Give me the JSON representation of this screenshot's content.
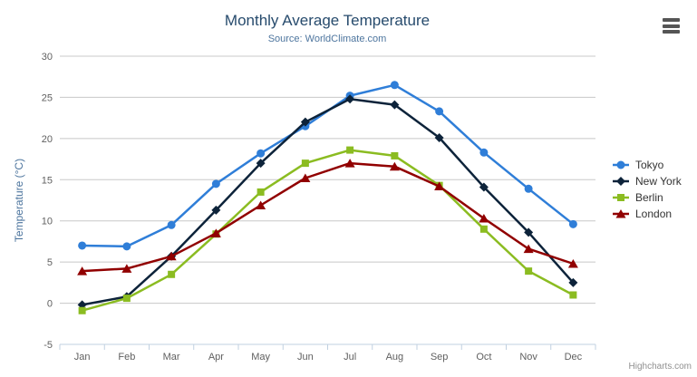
{
  "header": {
    "title": "Monthly Average Temperature",
    "subtitle": "Source: WorldClimate.com"
  },
  "credits": {
    "label": "Highcharts.com"
  },
  "export_menu": {
    "icon": "hamburger-icon"
  },
  "theme": {
    "title_color": "#274b6d",
    "subtitle_color": "#4d759e",
    "axis_title_color": "#4d759e",
    "tick_label_color": "#606060",
    "grid_color": "#c8c8c8",
    "axis_line_color": "#c0d0e0",
    "legend_text_color": "#333333",
    "credits_color": "#909090",
    "menu_icon_color": "#555555",
    "background": "#ffffff"
  },
  "chart_data": {
    "type": "line",
    "title": "Monthly Average Temperature",
    "subtitle": "Source: WorldClimate.com",
    "categories": [
      "Jan",
      "Feb",
      "Mar",
      "Apr",
      "May",
      "Jun",
      "Jul",
      "Aug",
      "Sep",
      "Oct",
      "Nov",
      "Dec"
    ],
    "xlabel": "",
    "ylabel": "Temperature (°C)",
    "ylim": [
      -5,
      30
    ],
    "ytick_step": 5,
    "grid": true,
    "legend_position": "right",
    "series": [
      {
        "name": "Tokyo",
        "color": "#2f7ed8",
        "marker": "circle",
        "values": [
          7.0,
          6.9,
          9.5,
          14.5,
          18.2,
          21.5,
          25.2,
          26.5,
          23.3,
          18.3,
          13.9,
          9.6
        ]
      },
      {
        "name": "New York",
        "color": "#0d233a",
        "marker": "diamond",
        "values": [
          -0.2,
          0.8,
          5.7,
          11.3,
          17.0,
          22.0,
          24.8,
          24.1,
          20.1,
          14.1,
          8.6,
          2.5
        ]
      },
      {
        "name": "Berlin",
        "color": "#8bbc21",
        "marker": "square",
        "values": [
          -0.9,
          0.6,
          3.5,
          8.4,
          13.5,
          17.0,
          18.6,
          17.9,
          14.3,
          9.0,
          3.9,
          1.0
        ]
      },
      {
        "name": "London",
        "color": "#910000",
        "marker": "triangle",
        "values": [
          3.9,
          4.2,
          5.7,
          8.5,
          11.9,
          15.2,
          17.0,
          16.6,
          14.2,
          10.3,
          6.6,
          4.8
        ]
      }
    ]
  }
}
